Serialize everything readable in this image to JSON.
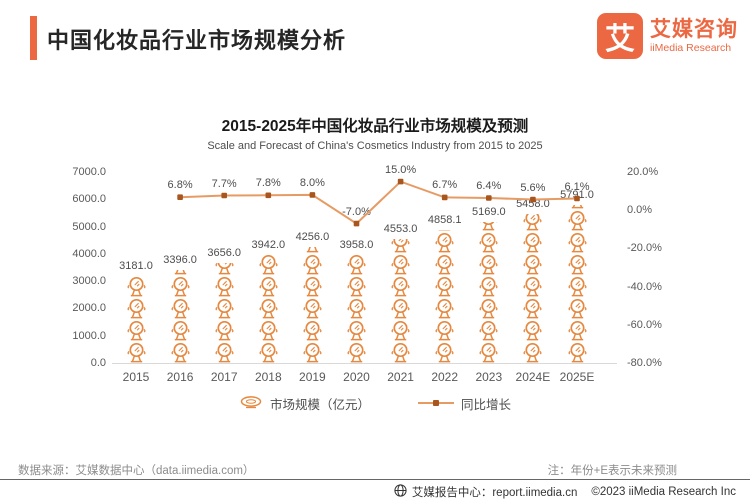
{
  "header": {
    "title": "中国化妆品行业市场规模分析"
  },
  "logo": {
    "mark": "艾",
    "name_cn": "艾媒咨询",
    "name_en": "iiMedia Research"
  },
  "chart": {
    "title": "2015-2025年中国化妆品行业市场规模及预测",
    "subtitle": "Scale and Forecast of China's Cosmetics Industry from 2015 to 2025"
  },
  "chart_data": {
    "type": "bar",
    "categories": [
      "2015",
      "2016",
      "2017",
      "2018",
      "2019",
      "2020",
      "2021",
      "2022",
      "2023",
      "2024E",
      "2025E"
    ],
    "series": [
      {
        "name": "市场规模（亿元）",
        "type": "pictogram-bar",
        "axis": "left",
        "values": [
          3181.0,
          3396.0,
          3656.0,
          3942.0,
          4256.0,
          3958.0,
          4553.0,
          4858.1,
          5169.0,
          5458.0,
          5791.0
        ]
      },
      {
        "name": "同比增长",
        "type": "line",
        "axis": "right",
        "values": [
          null,
          6.8,
          7.7,
          7.8,
          8.0,
          -7.0,
          15.0,
          6.7,
          6.4,
          5.6,
          6.1
        ]
      }
    ],
    "left_axis": {
      "min": 0,
      "max": 7000,
      "step": 1000
    },
    "right_axis": {
      "min": -80,
      "max": 20,
      "step": 20
    },
    "grid": false,
    "legend_position": "bottom"
  },
  "legend": {
    "bar_label": "市场规模（亿元）",
    "line_label": "同比增长"
  },
  "footer": {
    "source": "数据来源：艾媒数据中心（data.iimedia.com）",
    "note": "注：年份+E表示未来预测",
    "report_center": "艾媒报告中心：report.iimedia.cn",
    "copyright": "©2023  iiMedia Research Inc"
  },
  "colors": {
    "brand": "#EB6842",
    "bar_icon": "#E6883F",
    "line": "#E79B64",
    "marker": "#A9561E"
  }
}
